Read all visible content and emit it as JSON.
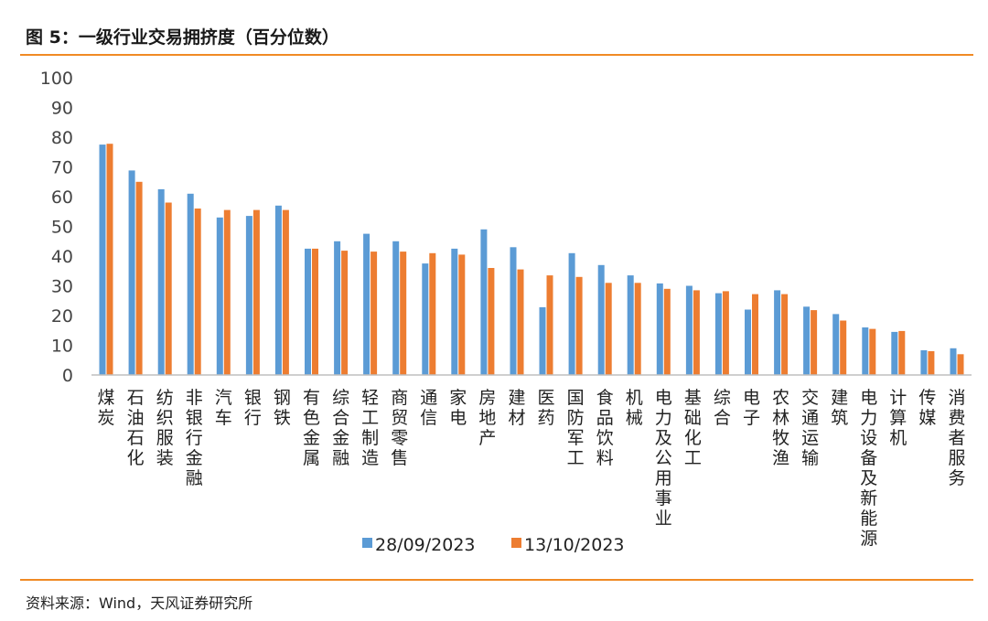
{
  "figure": {
    "title": "图 5：一级行业交易拥挤度（百分位数）",
    "source": "资料来源：Wind，天风证券研究所"
  },
  "colors": {
    "series1": "#5b9bd5",
    "series2": "#ed7d31",
    "accent": "#f08a24"
  },
  "chart_data": {
    "type": "bar",
    "categories": [
      "煤炭",
      "石油石化",
      "纺织服装",
      "非银行金融",
      "汽车",
      "银行",
      "钢铁",
      "有色金属",
      "综合金融",
      "轻工制造",
      "商贸零售",
      "通信",
      "家电",
      "房地产",
      "建材",
      "医药",
      "国防军工",
      "食品饮料",
      "机械",
      "电力及公用事业",
      "基础化工",
      "综合",
      "电子",
      "农林牧渔",
      "交通运输",
      "建筑",
      "电力设备及新能源",
      "计算机",
      "传媒",
      "消费者服务"
    ],
    "series": [
      {
        "name": "28/09/2023",
        "values": [
          77.5,
          68.8,
          62.5,
          61,
          53,
          53.5,
          57,
          42.5,
          45,
          47.5,
          45,
          37.5,
          42.5,
          49,
          43,
          22.8,
          41,
          37,
          33.5,
          30.8,
          30,
          27.5,
          22,
          28.5,
          23,
          20.5,
          16,
          14.5,
          8.3,
          9
        ]
      },
      {
        "name": "13/10/2023",
        "values": [
          77.8,
          65,
          58,
          56,
          55.5,
          55.5,
          55.5,
          42.5,
          41.8,
          41.5,
          41.5,
          41,
          40.5,
          36,
          35.5,
          33.5,
          33,
          31,
          31,
          29,
          28.5,
          28.2,
          27.2,
          27.2,
          21.8,
          18.3,
          15.5,
          14.8,
          8,
          7
        ]
      }
    ],
    "yticks": [
      "0",
      "10",
      "20",
      "30",
      "40",
      "50",
      "60",
      "70",
      "80",
      "90",
      "100"
    ],
    "ylim": [
      0,
      100
    ],
    "legend_position": "bottom"
  }
}
